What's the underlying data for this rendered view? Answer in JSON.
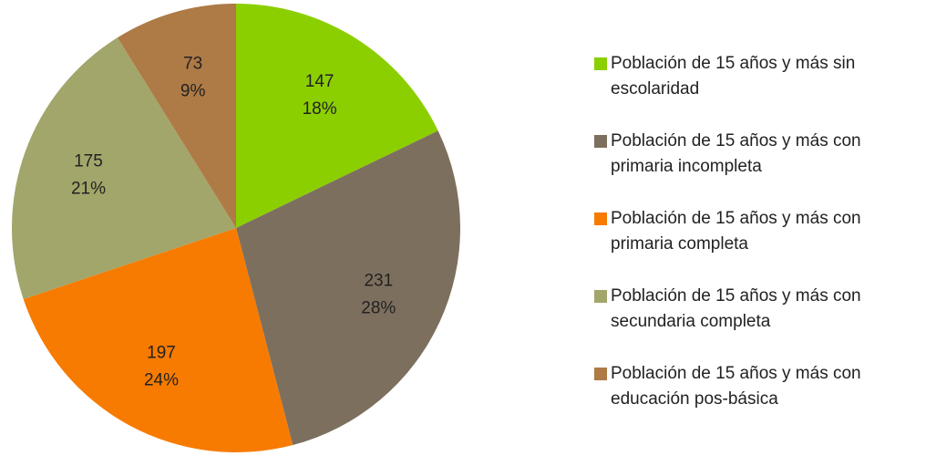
{
  "chart_data": {
    "type": "pie",
    "categories": [
      "Población de 15 años y más sin escolaridad",
      "Población de 15 años y más con primaria incompleta",
      "Población de 15 años y más con primaria completa",
      "Población de 15 años y más con secundaria completa",
      "Población de 15 años y más con educación pos-básica"
    ],
    "values": [
      147,
      231,
      197,
      175,
      73
    ],
    "percent_labels": [
      "18%",
      "28%",
      "24%",
      "21%",
      "9%"
    ],
    "colors": [
      "#8ccf00",
      "#7d6f5e",
      "#f77b00",
      "#a2a66a",
      "#ae7a45"
    ],
    "legend": "right"
  }
}
